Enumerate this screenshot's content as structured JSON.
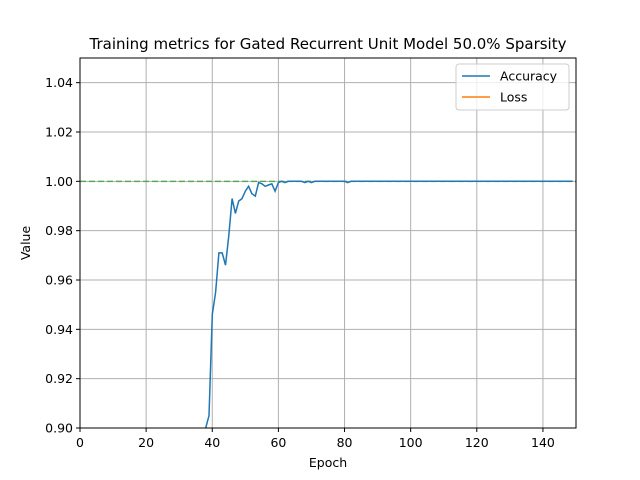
{
  "chart_data": {
    "type": "line",
    "title": "Training metrics for Gated Recurrent Unit Model 50.0% Sparsity",
    "xlabel": "Epoch",
    "ylabel": "Value",
    "xlim": [
      0,
      150
    ],
    "ylim": [
      0.9,
      1.05
    ],
    "xticks": [
      0,
      20,
      40,
      60,
      80,
      100,
      120,
      140
    ],
    "yticks": [
      0.9,
      0.92,
      0.94,
      0.96,
      0.98,
      1.0,
      1.02,
      1.04
    ],
    "xtick_labels": [
      "0",
      "20",
      "40",
      "60",
      "80",
      "100",
      "120",
      "140"
    ],
    "ytick_labels": [
      "0.90",
      "0.92",
      "0.94",
      "0.96",
      "0.98",
      "1.00",
      "1.02",
      "1.04"
    ],
    "grid": true,
    "legend_position": "top-right",
    "reference_line": {
      "y": 1.0,
      "style": "dashed",
      "color": "#2ca02c"
    },
    "series": [
      {
        "name": "Accuracy",
        "color": "#1f77b4",
        "x": [
          38,
          39,
          40,
          41,
          42,
          43,
          44,
          45,
          46,
          47,
          48,
          49,
          50,
          51,
          52,
          53,
          54,
          55,
          56,
          57,
          58,
          59,
          60,
          61,
          62,
          63,
          64,
          65,
          66,
          67,
          68,
          69,
          70,
          71,
          72,
          73,
          74,
          75,
          76,
          77,
          78,
          79,
          80,
          81,
          82,
          83,
          84,
          85,
          86,
          87,
          88,
          89,
          90,
          100,
          110,
          120,
          130,
          140,
          149
        ],
        "y": [
          0.9,
          0.905,
          0.946,
          0.955,
          0.971,
          0.971,
          0.966,
          0.978,
          0.993,
          0.987,
          0.992,
          0.993,
          0.996,
          0.998,
          0.995,
          0.994,
          0.9995,
          0.999,
          0.998,
          0.9985,
          0.999,
          0.996,
          0.9995,
          1.0,
          0.9995,
          1.0,
          1.0,
          1.0,
          1.0,
          1.0,
          0.9995,
          1.0,
          0.9995,
          1.0,
          1.0,
          1.0,
          1.0,
          1.0,
          1.0,
          1.0,
          1.0,
          1.0,
          1.0,
          0.9995,
          1.0,
          1.0,
          1.0,
          1.0,
          1.0,
          1.0,
          1.0,
          1.0,
          1.0,
          1.0,
          1.0,
          1.0,
          1.0,
          1.0,
          1.0
        ]
      },
      {
        "name": "Loss",
        "color": "#ff7f0e",
        "x": [],
        "y": []
      }
    ]
  }
}
